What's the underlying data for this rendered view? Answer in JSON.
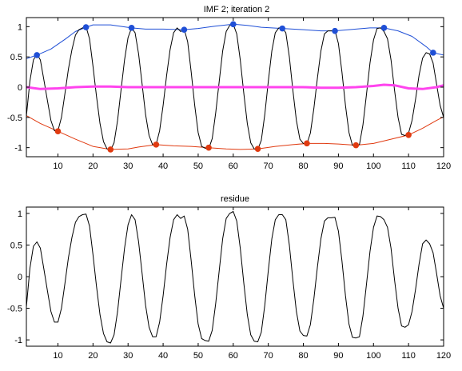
{
  "chart_data": [
    {
      "type": "line",
      "title": "IMF 2;   iteration 2",
      "xlim": [
        1,
        120
      ],
      "ylim": [
        -1.15,
        1.15
      ],
      "xticks": [
        10,
        20,
        30,
        40,
        50,
        60,
        70,
        80,
        90,
        100,
        110,
        120
      ],
      "yticks": [
        1,
        0.5,
        0,
        -0.5,
        -1
      ],
      "ytick_labels": [
        "1",
        "0.5",
        "0",
        "-0.5",
        "-1"
      ],
      "signal": {
        "color": "#000000",
        "x": [
          1,
          2,
          3,
          4,
          5,
          6,
          7,
          8,
          9,
          10,
          11,
          12,
          13,
          14,
          15,
          16,
          17,
          18,
          19,
          20,
          21,
          22,
          23,
          24,
          25,
          26,
          27,
          28,
          29,
          30,
          31,
          32,
          33,
          34,
          35,
          36,
          37,
          38,
          39,
          40,
          41,
          42,
          43,
          44,
          45,
          46,
          47,
          48,
          49,
          50,
          51,
          52,
          53,
          54,
          55,
          56,
          57,
          58,
          59,
          60,
          61,
          62,
          63,
          64,
          65,
          66,
          67,
          68,
          69,
          70,
          71,
          72,
          73,
          74,
          75,
          76,
          77,
          78,
          79,
          80,
          81,
          82,
          83,
          84,
          85,
          86,
          87,
          88,
          89,
          90,
          91,
          92,
          93,
          94,
          95,
          96,
          97,
          98,
          99,
          100,
          101,
          102,
          103,
          104,
          105,
          106,
          107,
          108,
          109,
          110,
          111,
          112,
          113,
          114,
          115,
          116,
          117,
          118,
          119,
          120
        ],
        "y": [
          -0.48,
          0.1,
          0.45,
          0.55,
          0.45,
          0.12,
          -0.22,
          -0.55,
          -0.72,
          -0.72,
          -0.5,
          -0.1,
          0.3,
          0.62,
          0.86,
          0.95,
          0.98,
          1.0,
          0.8,
          0.35,
          -0.15,
          -0.6,
          -0.9,
          -1.02,
          -1.04,
          -0.92,
          -0.55,
          -0.05,
          0.45,
          0.82,
          0.98,
          0.9,
          0.55,
          0.05,
          -0.45,
          -0.8,
          -0.95,
          -0.95,
          -0.72,
          -0.3,
          0.2,
          0.62,
          0.9,
          0.98,
          0.92,
          0.96,
          0.75,
          0.25,
          -0.3,
          -0.75,
          -0.98,
          -1.01,
          -1.02,
          -0.85,
          -0.42,
          0.1,
          0.6,
          0.92,
          1.02,
          1.04,
          0.88,
          0.45,
          -0.1,
          -0.6,
          -0.92,
          -1.02,
          -1.03,
          -0.88,
          -0.45,
          0.1,
          0.6,
          0.9,
          0.98,
          0.98,
          0.9,
          0.5,
          -0.05,
          -0.55,
          -0.86,
          -0.93,
          -0.94,
          -0.76,
          -0.35,
          0.15,
          0.6,
          0.88,
          0.93,
          0.93,
          0.94,
          0.72,
          0.25,
          -0.3,
          -0.75,
          -0.96,
          -0.97,
          -0.95,
          -0.62,
          -0.12,
          0.4,
          0.78,
          0.97,
          0.98,
          0.92,
          0.8,
          0.45,
          -0.05,
          -0.5,
          -0.78,
          -0.8,
          -0.76,
          -0.55,
          -0.2,
          0.2,
          0.48,
          0.57,
          0.55,
          0.4,
          0.05,
          -0.3,
          -0.5
        ]
      },
      "upper_envelope": {
        "color": "#1f4fd6",
        "x": [
          1,
          4,
          8,
          12,
          15,
          18,
          20,
          25,
          31,
          35,
          40,
          46,
          50,
          55,
          60,
          64,
          68,
          74,
          80,
          85,
          89,
          95,
          99,
          103,
          107,
          111,
          115,
          117,
          120
        ],
        "y": [
          0.47,
          0.53,
          0.63,
          0.79,
          0.92,
          0.99,
          1.03,
          1.03,
          0.98,
          0.96,
          0.96,
          0.95,
          0.97,
          1.01,
          1.04,
          1.02,
          0.99,
          0.97,
          0.95,
          0.93,
          0.93,
          0.96,
          0.98,
          0.98,
          0.93,
          0.84,
          0.67,
          0.57,
          0.53
        ]
      },
      "upper_maxima": {
        "color": "#1f4fd6",
        "x": [
          4,
          18,
          31,
          46,
          60,
          74,
          89,
          103,
          117
        ],
        "y": [
          0.53,
          0.99,
          0.98,
          0.95,
          1.04,
          0.97,
          0.93,
          0.98,
          0.57
        ]
      },
      "lower_envelope": {
        "color": "#e03a10",
        "x": [
          1,
          5,
          10,
          15,
          20,
          25,
          30,
          33,
          38,
          43,
          48,
          53,
          58,
          62,
          67,
          72,
          77,
          81,
          86,
          90,
          95,
          100,
          105,
          110,
          114,
          118,
          120
        ],
        "y": [
          -0.47,
          -0.6,
          -0.73,
          -0.86,
          -0.98,
          -1.03,
          -1.02,
          -0.99,
          -0.95,
          -0.97,
          -0.98,
          -1.0,
          -1.02,
          -1.03,
          -1.02,
          -0.98,
          -0.95,
          -0.93,
          -0.93,
          -0.94,
          -0.96,
          -0.93,
          -0.86,
          -0.79,
          -0.68,
          -0.55,
          -0.49
        ]
      },
      "lower_minima": {
        "color": "#e03a10",
        "x": [
          10,
          25,
          38,
          53,
          67,
          81,
          95,
          110
        ],
        "y": [
          -0.73,
          -1.03,
          -0.95,
          -1.0,
          -1.02,
          -0.93,
          -0.96,
          -0.79
        ]
      },
      "mean_envelope": {
        "color": "#ff44ee",
        "x": [
          1,
          5,
          10,
          15,
          20,
          25,
          30,
          35,
          40,
          45,
          50,
          55,
          60,
          65,
          70,
          75,
          80,
          85,
          90,
          95,
          100,
          103,
          106,
          110,
          114,
          118,
          120
        ],
        "y": [
          0.0,
          -0.03,
          -0.02,
          0.0,
          0.01,
          0.01,
          0.0,
          0.0,
          0.0,
          0.0,
          0.0,
          0.0,
          0.0,
          0.0,
          0.0,
          0.0,
          0.0,
          -0.01,
          -0.01,
          0.0,
          0.02,
          0.04,
          0.03,
          -0.02,
          -0.03,
          0.0,
          0.03
        ]
      }
    },
    {
      "type": "line",
      "title": "residue",
      "xlim": [
        1,
        120
      ],
      "ylim": [
        -1.1,
        1.1
      ],
      "xticks": [
        10,
        20,
        30,
        40,
        50,
        60,
        70,
        80,
        90,
        100,
        110,
        120
      ],
      "yticks": [
        1,
        0.5,
        0,
        -0.5,
        -1
      ],
      "ytick_labels": [
        "1",
        "0.5",
        "0",
        "-0.5",
        "-1"
      ],
      "signal": {
        "color": "#000000",
        "x": [
          1,
          2,
          3,
          4,
          5,
          6,
          7,
          8,
          9,
          10,
          11,
          12,
          13,
          14,
          15,
          16,
          17,
          18,
          19,
          20,
          21,
          22,
          23,
          24,
          25,
          26,
          27,
          28,
          29,
          30,
          31,
          32,
          33,
          34,
          35,
          36,
          37,
          38,
          39,
          40,
          41,
          42,
          43,
          44,
          45,
          46,
          47,
          48,
          49,
          50,
          51,
          52,
          53,
          54,
          55,
          56,
          57,
          58,
          59,
          60,
          61,
          62,
          63,
          64,
          65,
          66,
          67,
          68,
          69,
          70,
          71,
          72,
          73,
          74,
          75,
          76,
          77,
          78,
          79,
          80,
          81,
          82,
          83,
          84,
          85,
          86,
          87,
          88,
          89,
          90,
          91,
          92,
          93,
          94,
          95,
          96,
          97,
          98,
          99,
          100,
          101,
          102,
          103,
          104,
          105,
          106,
          107,
          108,
          109,
          110,
          111,
          112,
          113,
          114,
          115,
          116,
          117,
          118,
          119,
          120
        ],
        "y": [
          -0.48,
          0.13,
          0.48,
          0.55,
          0.45,
          0.12,
          -0.22,
          -0.55,
          -0.72,
          -0.72,
          -0.5,
          -0.1,
          0.3,
          0.62,
          0.86,
          0.95,
          0.98,
          0.99,
          0.8,
          0.35,
          -0.15,
          -0.6,
          -0.9,
          -1.03,
          -1.05,
          -0.92,
          -0.55,
          -0.05,
          0.45,
          0.82,
          0.98,
          0.9,
          0.55,
          0.05,
          -0.45,
          -0.8,
          -0.95,
          -0.95,
          -0.72,
          -0.3,
          0.2,
          0.62,
          0.9,
          0.98,
          0.92,
          0.96,
          0.75,
          0.25,
          -0.3,
          -0.75,
          -0.98,
          -1.01,
          -1.02,
          -0.85,
          -0.42,
          0.1,
          0.6,
          0.92,
          1.0,
          1.03,
          0.88,
          0.45,
          -0.1,
          -0.6,
          -0.92,
          -1.02,
          -1.03,
          -0.88,
          -0.45,
          0.1,
          0.6,
          0.9,
          0.98,
          0.98,
          0.9,
          0.5,
          -0.05,
          -0.55,
          -0.86,
          -0.93,
          -0.94,
          -0.76,
          -0.35,
          0.15,
          0.6,
          0.88,
          0.93,
          0.93,
          0.94,
          0.72,
          0.25,
          -0.3,
          -0.75,
          -0.96,
          -0.97,
          -0.95,
          -0.62,
          -0.12,
          0.4,
          0.78,
          0.96,
          0.95,
          0.9,
          0.78,
          0.45,
          -0.05,
          -0.5,
          -0.78,
          -0.8,
          -0.76,
          -0.55,
          -0.2,
          0.2,
          0.52,
          0.58,
          0.52,
          0.38,
          0.05,
          -0.3,
          -0.5
        ]
      }
    }
  ]
}
